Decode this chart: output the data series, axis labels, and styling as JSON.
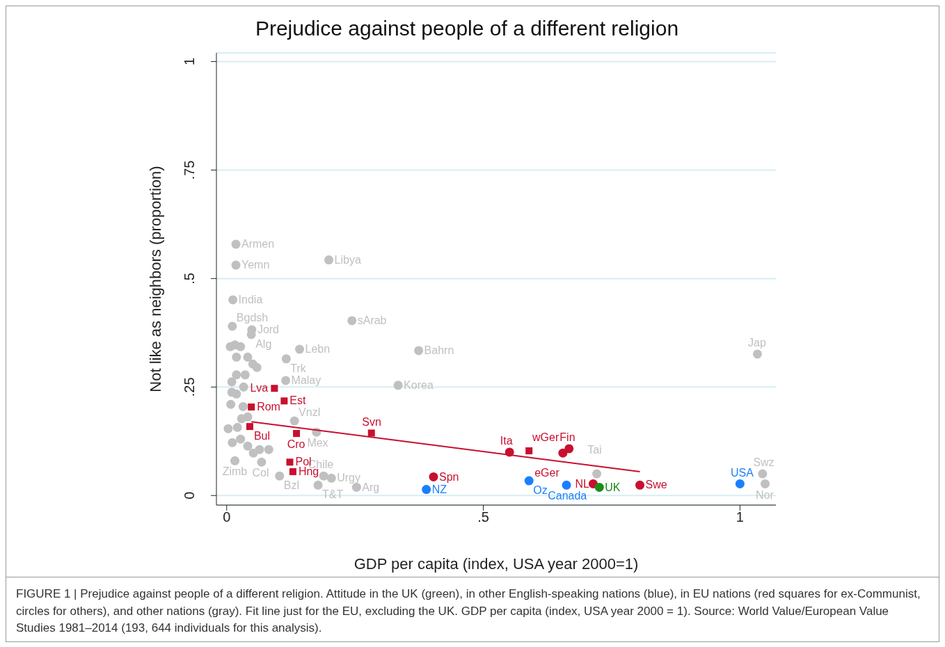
{
  "chart_data": {
    "type": "scatter",
    "title": "Prejudice against people of a different religion",
    "xlabel": "GDP per capita (index, USA year 2000=1)",
    "ylabel": "Not like as neighbors (proportion)",
    "xlim": [
      -0.02,
      1.07
    ],
    "ylim": [
      -0.022,
      1.02
    ],
    "xticks": [
      0,
      {
        "value": 0.5,
        "label": ".5"
      },
      1
    ],
    "yticks": [
      0,
      {
        "value": 0.25,
        "label": ".25"
      },
      {
        "value": 0.5,
        "label": ".5"
      },
      {
        "value": 0.75,
        "label": ".75"
      },
      1
    ],
    "grid": "y",
    "series": [
      {
        "marker": "circle",
        "color": "#c0c0c0",
        "x": [
          0.018,
          0.018,
          0.199,
          0.012,
          0.244,
          0.011,
          0.049,
          0.048,
          0.142,
          0.374,
          1.034,
          0.116,
          0.334,
          0.115,
          0.132,
          0.175,
          0.189,
          0.204,
          0.178,
          0.253,
          0.103,
          0.016,
          0.068,
          0.721,
          1.044,
          1.049,
          0.007,
          0.016,
          0.027,
          0.019,
          0.041,
          0.051,
          0.059,
          0.019,
          0.036,
          0.01,
          0.033,
          0.01,
          0.019,
          0.008,
          0.032,
          0.041,
          0.029,
          0.003,
          0.021,
          0.011,
          0.027,
          0.041,
          0.052,
          0.064,
          0.082
        ],
        "values": [
          0.579,
          0.531,
          0.543,
          0.451,
          0.403,
          0.39,
          0.382,
          0.371,
          0.337,
          0.334,
          0.326,
          0.315,
          0.254,
          0.265,
          0.172,
          0.146,
          0.045,
          0.04,
          0.024,
          0.019,
          0.045,
          0.08,
          0.077,
          0.05,
          0.05,
          0.027,
          0.343,
          0.347,
          0.343,
          0.319,
          0.319,
          0.303,
          0.295,
          0.278,
          0.278,
          0.262,
          0.25,
          0.238,
          0.234,
          0.21,
          0.205,
          0.181,
          0.177,
          0.154,
          0.157,
          0.122,
          0.13,
          0.114,
          0.098,
          0.106,
          0.106
        ]
      },
      {
        "marker": "circle",
        "color": "#c8102e",
        "x": [
          0.551,
          0.667,
          0.655,
          0.403,
          0.714,
          0.805
        ],
        "values": [
          0.1,
          0.108,
          0.098,
          0.043,
          0.027,
          0.024
        ]
      },
      {
        "marker": "square",
        "color": "#c8102e",
        "x": [
          0.093,
          0.112,
          0.048,
          0.045,
          0.136,
          0.282,
          0.123,
          0.129,
          0.589
        ],
        "values": [
          0.247,
          0.218,
          0.204,
          0.159,
          0.143,
          0.144,
          0.077,
          0.055,
          0.103
        ]
      },
      {
        "marker": "circle",
        "color": "#1a7fff",
        "x": [
          0.389,
          0.589,
          0.662,
          1.0
        ],
        "values": [
          0.014,
          0.034,
          0.024,
          0.027
        ]
      },
      {
        "marker": "circle",
        "color": "#1a8c1a",
        "x": [
          0.726
        ],
        "values": [
          0.019
        ]
      },
      {
        "type": "line",
        "marker": "none",
        "color": "#c8102e",
        "x": [
          0.048,
          0.805
        ],
        "values": [
          0.17,
          0.055
        ]
      }
    ],
    "annotations": [
      {
        "text": "Armen",
        "x": 0.018,
        "y": 0.579
      },
      {
        "text": "Yemn",
        "x": 0.018,
        "y": 0.531
      },
      {
        "text": "Libya",
        "x": 0.199,
        "y": 0.543
      },
      {
        "text": "India",
        "x": 0.012,
        "y": 0.451
      },
      {
        "text": "sArab",
        "x": 0.244,
        "y": 0.403
      },
      {
        "text": "Bgdsh",
        "x": 0.011,
        "y": 0.39
      },
      {
        "text": "Jord",
        "x": 0.049,
        "y": 0.382
      },
      {
        "text": "Alg",
        "x": 0.048,
        "y": 0.371
      },
      {
        "text": "Lebn",
        "x": 0.142,
        "y": 0.337
      },
      {
        "text": "Bahrn",
        "x": 0.374,
        "y": 0.334
      },
      {
        "text": "Jap",
        "x": 1.034,
        "y": 0.326
      },
      {
        "text": "Trk",
        "x": 0.116,
        "y": 0.315
      },
      {
        "text": "Korea",
        "x": 0.334,
        "y": 0.254
      },
      {
        "text": "Malay",
        "x": 0.115,
        "y": 0.265
      },
      {
        "text": "Vnzl",
        "x": 0.132,
        "y": 0.172
      },
      {
        "text": "Mex",
        "x": 0.175,
        "y": 0.146
      },
      {
        "text": "Chile",
        "x": 0.189,
        "y": 0.045
      },
      {
        "text": "Urgy",
        "x": 0.204,
        "y": 0.04
      },
      {
        "text": "T&T",
        "x": 0.178,
        "y": 0.024
      },
      {
        "text": "Arg",
        "x": 0.253,
        "y": 0.019
      },
      {
        "text": "Bzl",
        "x": 0.103,
        "y": 0.045
      },
      {
        "text": "Zimb",
        "x": 0.016,
        "y": 0.08
      },
      {
        "text": "Col",
        "x": 0.068,
        "y": 0.077
      },
      {
        "text": "Tai",
        "x": 0.721,
        "y": 0.05
      },
      {
        "text": "Swz",
        "x": 1.044,
        "y": 0.05
      },
      {
        "text": "Nor",
        "x": 1.049,
        "y": 0.027
      },
      {
        "text": "Ita",
        "x": 0.551,
        "y": 0.1
      },
      {
        "text": "Fin",
        "x": 0.667,
        "y": 0.108
      },
      {
        "text": "wGer",
        "x": 0.655,
        "y": 0.098
      },
      {
        "text": "Spn",
        "x": 0.403,
        "y": 0.043
      },
      {
        "text": "NL",
        "x": 0.714,
        "y": 0.027
      },
      {
        "text": "Swe",
        "x": 0.805,
        "y": 0.024
      },
      {
        "text": "Lva",
        "x": 0.093,
        "y": 0.247
      },
      {
        "text": "Est",
        "x": 0.112,
        "y": 0.218
      },
      {
        "text": "Rom",
        "x": 0.048,
        "y": 0.204
      },
      {
        "text": "Bul",
        "x": 0.045,
        "y": 0.159
      },
      {
        "text": "Cro",
        "x": 0.136,
        "y": 0.143
      },
      {
        "text": "Svn",
        "x": 0.282,
        "y": 0.144
      },
      {
        "text": "Pol",
        "x": 0.123,
        "y": 0.077
      },
      {
        "text": "Hng",
        "x": 0.129,
        "y": 0.055
      },
      {
        "text": "eGer",
        "x": 0.589,
        "y": 0.103
      },
      {
        "text": "NZ",
        "x": 0.389,
        "y": 0.014
      },
      {
        "text": "Oz",
        "x": 0.589,
        "y": 0.034
      },
      {
        "text": "Canada",
        "x": 0.662,
        "y": 0.024
      },
      {
        "text": "USA",
        "x": 1.0,
        "y": 0.027
      },
      {
        "text": "UK",
        "x": 0.726,
        "y": 0.019
      },
      "FIGURE 1 | Prejudice against people of a different religion. Attitude in the UK (green), in other English-speaking nations (blue), in EU nations (red squares for ex-Communist, circles for others), and other nations (gray). Fit line just for the EU, excluding the UK. GDP per capita (index, USA year 2000 = 1). Source: World Value/European Value Studies 1981–2014 (193, 644 individuals for this analysis)."
    ]
  }
}
